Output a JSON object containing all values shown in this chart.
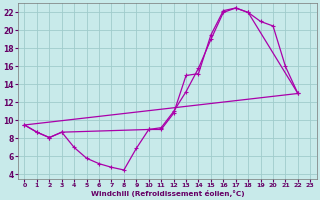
{
  "xlabel": "Windchill (Refroidissement éolien,°C)",
  "bg_color": "#c8eaea",
  "line_color": "#aa00aa",
  "grid_color": "#a0cccc",
  "xlim": [
    -0.5,
    23.5
  ],
  "ylim": [
    3.5,
    23
  ],
  "yticks": [
    4,
    6,
    8,
    10,
    12,
    14,
    16,
    18,
    20,
    22
  ],
  "xticks": [
    0,
    1,
    2,
    3,
    4,
    5,
    6,
    7,
    8,
    9,
    10,
    11,
    12,
    13,
    14,
    15,
    16,
    17,
    18,
    19,
    20,
    21,
    22,
    23
  ],
  "line1_x": [
    0,
    1,
    2,
    3,
    4,
    5,
    6,
    7,
    8,
    9,
    10,
    11,
    12,
    13,
    14,
    15,
    16,
    17,
    18,
    19,
    20,
    21,
    22
  ],
  "line1_y": [
    9.5,
    8.7,
    8.1,
    8.7,
    7.0,
    5.8,
    5.2,
    4.8,
    4.5,
    6.9,
    9.0,
    9.0,
    10.8,
    15.0,
    15.2,
    19.5,
    22.2,
    22.5,
    22.0,
    21.0,
    20.5,
    16.0,
    13.0
  ],
  "line2_x": [
    0,
    1,
    2,
    3,
    10,
    11,
    12,
    13,
    14,
    15,
    16,
    17,
    18,
    22
  ],
  "line2_y": [
    9.5,
    8.7,
    8.1,
    8.7,
    9.0,
    9.2,
    11.0,
    13.2,
    15.8,
    19.0,
    22.0,
    22.5,
    22.0,
    13.0
  ],
  "line3_x": [
    0,
    22
  ],
  "line3_y": [
    9.5,
    13.0
  ]
}
